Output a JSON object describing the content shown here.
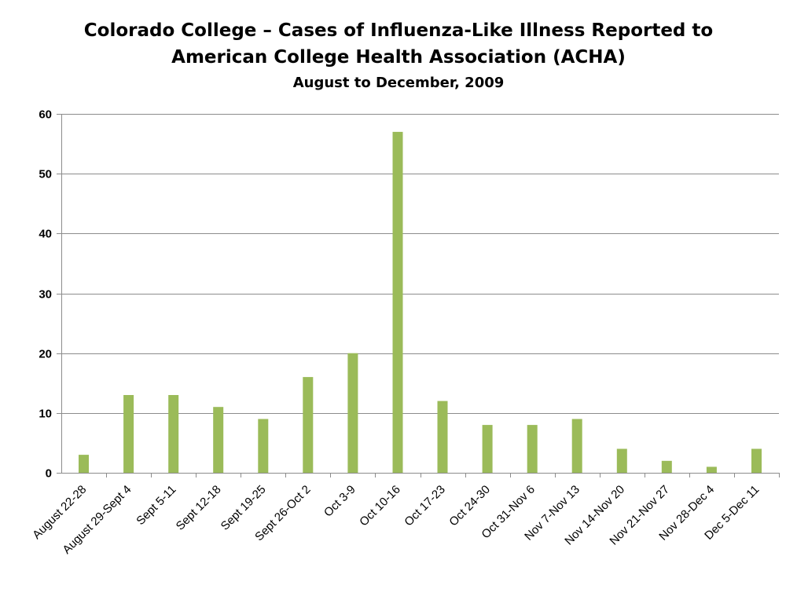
{
  "chart_data": {
    "type": "bar",
    "title_lines": [
      "Colorado College – Cases of Influenza-Like Illness Reported to",
      "American College Health Association (ACHA)"
    ],
    "subtitle": "August to December, 2009",
    "categories": [
      "August 22-28",
      "August 29-Sept 4",
      "Sept 5-11",
      "Sept 12-18",
      "Sept 19-25",
      "Sept 26-Oct 2",
      "Oct 3-9",
      "Oct 10-16",
      "Oct 17-23",
      "Oct 24-30",
      "Oct 31-Nov 6",
      "Nov 7-Nov 13",
      "Nov 14-Nov 20",
      "Nov 21-Nov 27",
      "Nov 28-Dec 4",
      "Dec 5-Dec 11"
    ],
    "values": [
      3,
      13,
      13,
      11,
      9,
      16,
      20,
      57,
      12,
      8,
      8,
      9,
      4,
      2,
      1,
      4
    ],
    "ylim": [
      0,
      60
    ],
    "yticks": [
      0,
      10,
      20,
      30,
      40,
      50,
      60
    ],
    "grid": true,
    "legend": "none",
    "bar_color": "#9bbb59"
  }
}
